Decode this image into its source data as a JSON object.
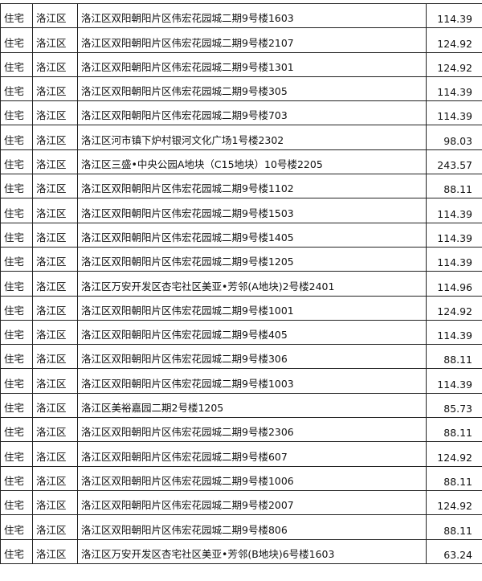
{
  "table": {
    "rows": [
      [
        "住宅",
        "洛江区",
        "洛江区双阳朝阳片区伟宏花园城二期9号楼1603",
        "114.39"
      ],
      [
        "住宅",
        "洛江区",
        "洛江区双阳朝阳片区伟宏花园城二期9号楼2107",
        "124.92"
      ],
      [
        "住宅",
        "洛江区",
        "洛江区双阳朝阳片区伟宏花园城二期9号楼1301",
        "124.92"
      ],
      [
        "住宅",
        "洛江区",
        "洛江区双阳朝阳片区伟宏花园城二期9号楼305",
        "114.39"
      ],
      [
        "住宅",
        "洛江区",
        "洛江区双阳朝阳片区伟宏花园城二期9号楼703",
        "114.39"
      ],
      [
        "住宅",
        "洛江区",
        "洛江区河市镇下炉村银河文化广场1号楼2302",
        "98.03"
      ],
      [
        "住宅",
        "洛江区",
        "洛江区三盛•中央公园A地块（C15地块）10号楼2205",
        "243.57"
      ],
      [
        "住宅",
        "洛江区",
        "洛江区双阳朝阳片区伟宏花园城二期9号楼1102",
        "88.11"
      ],
      [
        "住宅",
        "洛江区",
        "洛江区双阳朝阳片区伟宏花园城二期9号楼1503",
        "114.39"
      ],
      [
        "住宅",
        "洛江区",
        "洛江区双阳朝阳片区伟宏花园城二期9号楼1405",
        "114.39"
      ],
      [
        "住宅",
        "洛江区",
        "洛江区双阳朝阳片区伟宏花园城二期9号楼1205",
        "114.39"
      ],
      [
        "住宅",
        "洛江区",
        "洛江区万安开发区杏宅社区美亚•芳邻(A地块)2号楼2401",
        "114.96"
      ],
      [
        "住宅",
        "洛江区",
        "洛江区双阳朝阳片区伟宏花园城二期9号楼1001",
        "124.92"
      ],
      [
        "住宅",
        "洛江区",
        "洛江区双阳朝阳片区伟宏花园城二期9号楼405",
        "114.39"
      ],
      [
        "住宅",
        "洛江区",
        "洛江区双阳朝阳片区伟宏花园城二期9号楼306",
        "88.11"
      ],
      [
        "住宅",
        "洛江区",
        "洛江区双阳朝阳片区伟宏花园城二期9号楼1003",
        "114.39"
      ],
      [
        "住宅",
        "洛江区",
        "洛江区美裕嘉园二期2号楼1205",
        "85.73"
      ],
      [
        "住宅",
        "洛江区",
        "洛江区双阳朝阳片区伟宏花园城二期9号楼2306",
        "88.11"
      ],
      [
        "住宅",
        "洛江区",
        "洛江区双阳朝阳片区伟宏花园城二期9号楼607",
        "124.92"
      ],
      [
        "住宅",
        "洛江区",
        "洛江区双阳朝阳片区伟宏花园城二期9号楼1006",
        "88.11"
      ],
      [
        "住宅",
        "洛江区",
        "洛江区双阳朝阳片区伟宏花园城二期9号楼2007",
        "124.92"
      ],
      [
        "住宅",
        "洛江区",
        "洛江区双阳朝阳片区伟宏花园城二期9号楼806",
        "88.11"
      ],
      [
        "住宅",
        "洛江区",
        "洛江区万安开发区杏宅社区美亚•芳邻(B地块)6号楼1603",
        "63.24"
      ]
    ]
  }
}
